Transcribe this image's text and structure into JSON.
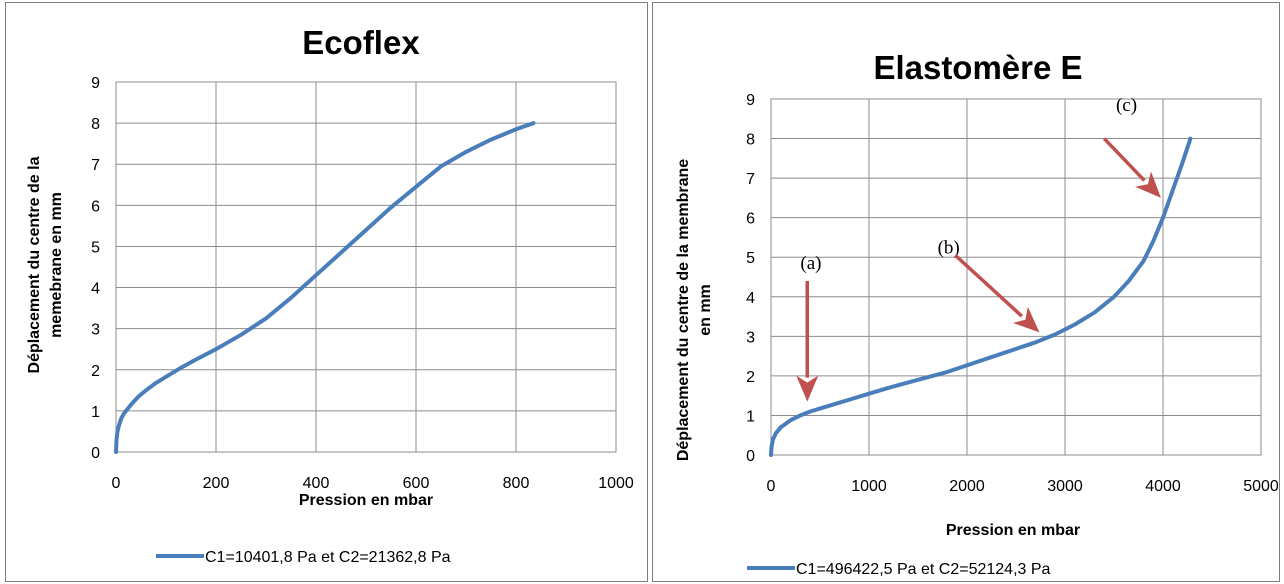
{
  "chart_data": [
    {
      "type": "line",
      "title": "Ecoflex",
      "xlabel": "Pression en mbar",
      "ylabel": [
        "Déplacement du centre de la",
        "memebrane en mm"
      ],
      "xlim": [
        0,
        1000
      ],
      "ylim": [
        0,
        9
      ],
      "xticks": [
        0,
        200,
        400,
        600,
        800,
        1000
      ],
      "yticks": [
        0,
        1,
        2,
        3,
        4,
        5,
        6,
        7,
        8,
        9
      ],
      "grid": true,
      "legend_position": "bottom",
      "series_color": "#4a7ebb",
      "series": [
        {
          "name": "C1=10401,8 Pa et C2=21362,8 Pa",
          "x": [
            0,
            1,
            3,
            6,
            10,
            15,
            20,
            30,
            45,
            60,
            80,
            100,
            130,
            160,
            200,
            250,
            300,
            350,
            400,
            450,
            500,
            550,
            600,
            650,
            700,
            750,
            800,
            835
          ],
          "y": [
            0,
            0.3,
            0.5,
            0.65,
            0.8,
            0.92,
            1.0,
            1.15,
            1.35,
            1.5,
            1.68,
            1.83,
            2.05,
            2.25,
            2.5,
            2.85,
            3.25,
            3.75,
            4.3,
            4.85,
            5.4,
            5.95,
            6.45,
            6.95,
            7.3,
            7.6,
            7.85,
            8.0
          ]
        }
      ]
    },
    {
      "type": "line",
      "title": "Elastomère E",
      "xlabel": "Pression en mbar",
      "ylabel": [
        "Déplacement du centre de la membrane",
        "en mm"
      ],
      "xlim": [
        0,
        5000
      ],
      "ylim": [
        0,
        9
      ],
      "xticks": [
        0,
        1000,
        2000,
        3000,
        4000,
        5000
      ],
      "yticks": [
        0,
        1,
        2,
        3,
        4,
        5,
        6,
        7,
        8,
        9
      ],
      "grid": true,
      "legend_position": "bottom",
      "series_color": "#4a7ebb",
      "annotation_color": "#c0504d",
      "series": [
        {
          "name": "C1=496422,5 Pa et C2=52124,3 Pa",
          "x": [
            0,
            5,
            20,
            50,
            100,
            200,
            300,
            400,
            600,
            800,
            1000,
            1200,
            1500,
            1800,
            2100,
            2400,
            2700,
            2900,
            3100,
            3300,
            3500,
            3650,
            3800,
            3900,
            4000,
            4100,
            4200,
            4280
          ],
          "y": [
            0,
            0.2,
            0.4,
            0.55,
            0.7,
            0.88,
            1.0,
            1.1,
            1.25,
            1.4,
            1.55,
            1.7,
            1.9,
            2.1,
            2.35,
            2.6,
            2.85,
            3.05,
            3.3,
            3.6,
            4.0,
            4.4,
            4.9,
            5.4,
            6.0,
            6.7,
            7.4,
            8.0
          ]
        }
      ],
      "annotations": [
        {
          "label": "(a)",
          "text_x": 300,
          "text_y": 4.7,
          "from_x": 370,
          "from_y": 4.4,
          "to_x": 370,
          "to_y": 1.35
        },
        {
          "label": "(b)",
          "text_x": 1700,
          "text_y": 5.1,
          "from_x": 1880,
          "from_y": 5.05,
          "to_x": 2740,
          "to_y": 3.1
        },
        {
          "label": "(c)",
          "text_x": 3520,
          "text_y": 8.7,
          "from_x": 3400,
          "from_y": 8.0,
          "to_x": 3980,
          "to_y": 6.5
        }
      ]
    }
  ]
}
